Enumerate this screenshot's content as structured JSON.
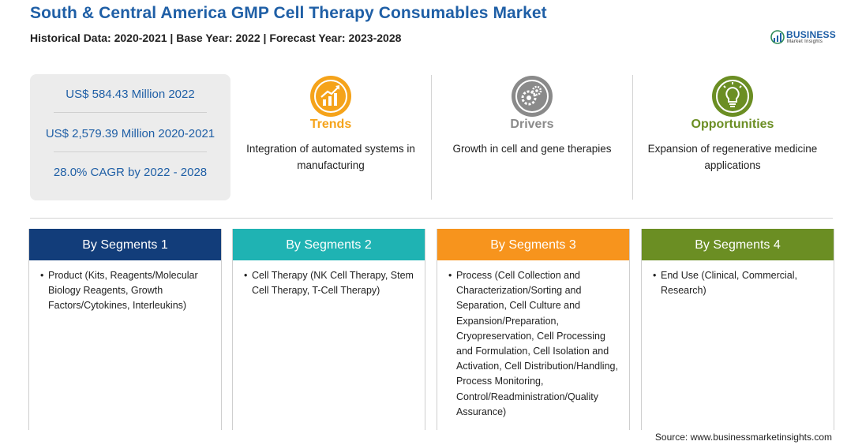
{
  "title": "South & Central America GMP Cell Therapy Consumables Market",
  "subtitle": "Historical Data: 2020-2021 | Base Year: 2022 | Forecast Year: 2023-2028",
  "logo": {
    "line1": "BUSINESS",
    "line2": "Market Insights"
  },
  "stats": [
    "US$ 584.43 Million 2022",
    "US$ 2,579.39 Million 2020-2021",
    "28.0% CAGR by 2022 - 2028"
  ],
  "highlights": [
    {
      "label": "Trends",
      "description": "Integration of automated systems in manufacturing",
      "color": "#f5a31a",
      "icon": "trend-chart-icon"
    },
    {
      "label": "Drivers",
      "description": "Growth in cell and gene therapies",
      "color": "#8a8a8a",
      "icon": "gears-icon"
    },
    {
      "label": "Opportunities",
      "description": "Expansion of regenerative medicine applications",
      "color": "#6b8e23",
      "icon": "lightbulb-icon"
    }
  ],
  "segments": [
    {
      "title": "By Segments 1",
      "color": "#123d7a",
      "items": [
        "Product (Kits, Reagents/Molecular Biology Reagents, Growth Factors/Cytokines, Interleukins)"
      ]
    },
    {
      "title": "By Segments 2",
      "color": "#1fb3b3",
      "items": [
        "Cell Therapy (NK Cell Therapy, Stem Cell Therapy, T-Cell Therapy)"
      ]
    },
    {
      "title": "By Segments 3",
      "color": "#f7941d",
      "items": [
        "Process (Cell Collection and Characterization/Sorting and Separation, Cell Culture and Expansion/Preparation, Cryopreservation, Cell Processing and Formulation, Cell Isolation and Activation, Cell Distribution/Handling, Process Monitoring, Control/Readministration/Quality Assurance)"
      ]
    },
    {
      "title": "By Segments 4",
      "color": "#6b8e23",
      "items": [
        "End Use (Clinical, Commercial, Research)"
      ]
    }
  ],
  "source": "Source: www.businessmarketinsights.com"
}
